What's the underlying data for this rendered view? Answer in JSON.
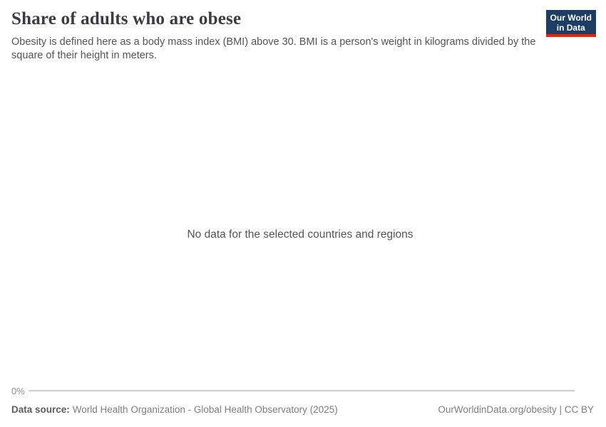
{
  "header": {
    "title": "Share of adults who are obese",
    "subtitle": "Obesity is defined here as a body mass index (BMI) above 30. BMI is a person's weight in kilograms divided by the square of their height in meters.",
    "logo": {
      "line1": "Our World",
      "line2": "in Data"
    }
  },
  "chart_data": {
    "type": "line",
    "title": "Share of adults who are obese",
    "categories": [],
    "series": [],
    "no_data_message": "No data for the selected countries and regions",
    "xlabel": "",
    "ylabel": "",
    "y_axis": {
      "tick_labels": [
        "0%"
      ],
      "ylim": [
        0,
        null
      ]
    },
    "grid": false,
    "legend_position": "none"
  },
  "footer": {
    "source_label": "Data source:",
    "source_text": "World Health Organization - Global Health Observatory (2025)",
    "license_text": "OurWorldinData.org/obesity | CC BY"
  },
  "colors": {
    "title": "#3b3b43",
    "subtitle": "#555555",
    "no_data_message": "#555555",
    "axis_label": "#8f8f8f",
    "axis_line": "#cccccc",
    "footer_text": "#7e7e7e",
    "logo_navy": "#1d3d63",
    "logo_red": "#d22a27",
    "background": "#ffffff"
  }
}
